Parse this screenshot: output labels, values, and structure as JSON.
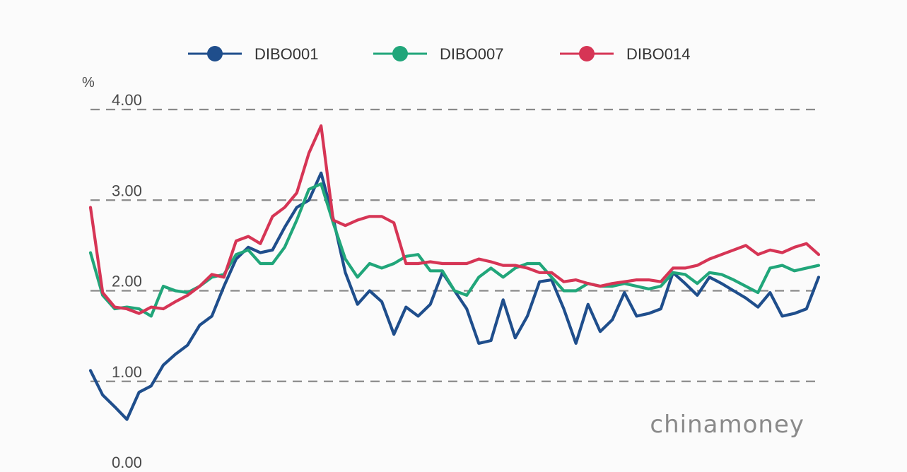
{
  "chart_data": {
    "type": "line",
    "title": "",
    "xlabel": "",
    "ylabel": "%",
    "ylim": [
      0,
      4
    ],
    "yticks": [
      "0.00",
      "1.00",
      "2.00",
      "3.00",
      "4.00"
    ],
    "grid": "horizontal dashed",
    "legend_position": "top-center",
    "watermark": "chinamoney",
    "series": [
      {
        "name": "DIBO001",
        "color": "#1f4e8c",
        "values": [
          1.12,
          0.85,
          0.72,
          0.58,
          0.88,
          0.95,
          1.18,
          1.3,
          1.4,
          1.62,
          1.72,
          2.05,
          2.35,
          2.48,
          2.42,
          2.45,
          2.7,
          2.92,
          3.0,
          3.3,
          2.8,
          2.2,
          1.85,
          2.0,
          1.88,
          1.52,
          1.82,
          1.72,
          1.85,
          2.2,
          2.0,
          1.8,
          1.42,
          1.45,
          1.9,
          1.48,
          1.72,
          2.1,
          2.12,
          1.8,
          1.42,
          1.85,
          1.55,
          1.68,
          1.98,
          1.72,
          1.75,
          1.8,
          2.2,
          2.08,
          1.95,
          2.15,
          2.08,
          2.0,
          1.92,
          1.82,
          1.98,
          1.72,
          1.75,
          1.8,
          2.15
        ]
      },
      {
        "name": "DIBO007",
        "color": "#21a67a",
        "values": [
          2.42,
          1.95,
          1.8,
          1.82,
          1.8,
          1.72,
          2.05,
          2.0,
          1.98,
          2.05,
          2.15,
          2.18,
          2.4,
          2.45,
          2.3,
          2.3,
          2.48,
          2.78,
          3.12,
          3.18,
          2.75,
          2.35,
          2.15,
          2.3,
          2.25,
          2.3,
          2.38,
          2.4,
          2.22,
          2.22,
          2.0,
          1.95,
          2.15,
          2.25,
          2.15,
          2.25,
          2.3,
          2.3,
          2.15,
          2.0,
          2.0,
          2.08,
          2.05,
          2.05,
          2.08,
          2.05,
          2.02,
          2.05,
          2.2,
          2.18,
          2.08,
          2.2,
          2.18,
          2.12,
          2.05,
          1.98,
          2.25,
          2.28,
          2.22,
          2.25,
          2.28
        ]
      },
      {
        "name": "DIBO014",
        "color": "#d63555",
        "values": [
          2.92,
          1.98,
          1.82,
          1.8,
          1.75,
          1.82,
          1.8,
          1.88,
          1.95,
          2.05,
          2.18,
          2.15,
          2.55,
          2.6,
          2.52,
          2.82,
          2.92,
          3.08,
          3.52,
          3.82,
          2.78,
          2.72,
          2.78,
          2.82,
          2.82,
          2.75,
          2.3,
          2.3,
          2.32,
          2.3,
          2.3,
          2.3,
          2.35,
          2.32,
          2.28,
          2.28,
          2.25,
          2.2,
          2.2,
          2.1,
          2.12,
          2.08,
          2.05,
          2.08,
          2.1,
          2.12,
          2.12,
          2.1,
          2.25,
          2.25,
          2.28,
          2.35,
          2.4,
          2.45,
          2.5,
          2.4,
          2.45,
          2.42,
          2.48,
          2.52,
          2.4
        ]
      }
    ]
  }
}
